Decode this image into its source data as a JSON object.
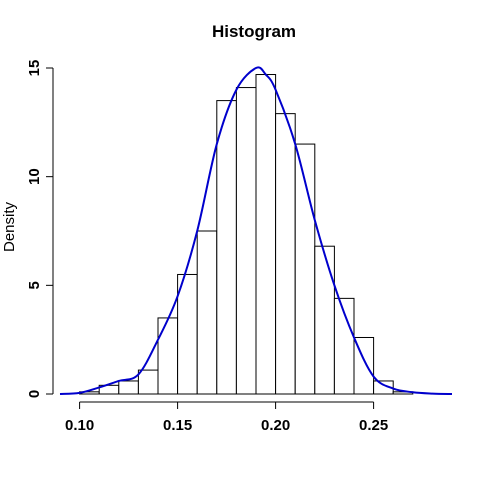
{
  "chart_data": {
    "type": "bar",
    "title": "Histogram",
    "xlabel": "",
    "ylabel": "Density",
    "xlim": [
      0.09,
      0.29
    ],
    "ylim": [
      0,
      15
    ],
    "bin_width": 0.01,
    "x_ticks": [
      0.1,
      0.15,
      0.2,
      0.25
    ],
    "x_tick_labels": [
      "0.10",
      "0.15",
      "0.20",
      "0.25"
    ],
    "y_ticks": [
      0,
      5,
      10,
      15
    ],
    "y_tick_labels": [
      "0",
      "5",
      "10",
      "15"
    ],
    "bins": [
      {
        "start": 0.1,
        "end": 0.11,
        "density": 0.1
      },
      {
        "start": 0.11,
        "end": 0.12,
        "density": 0.4
      },
      {
        "start": 0.12,
        "end": 0.13,
        "density": 0.6
      },
      {
        "start": 0.13,
        "end": 0.14,
        "density": 1.1
      },
      {
        "start": 0.14,
        "end": 0.15,
        "density": 3.5
      },
      {
        "start": 0.15,
        "end": 0.16,
        "density": 5.5
      },
      {
        "start": 0.16,
        "end": 0.17,
        "density": 7.5
      },
      {
        "start": 0.17,
        "end": 0.18,
        "density": 13.5
      },
      {
        "start": 0.18,
        "end": 0.19,
        "density": 14.1
      },
      {
        "start": 0.19,
        "end": 0.2,
        "density": 14.7
      },
      {
        "start": 0.2,
        "end": 0.21,
        "density": 12.9
      },
      {
        "start": 0.21,
        "end": 0.22,
        "density": 11.5
      },
      {
        "start": 0.22,
        "end": 0.23,
        "density": 6.8
      },
      {
        "start": 0.23,
        "end": 0.24,
        "density": 4.4
      },
      {
        "start": 0.24,
        "end": 0.25,
        "density": 2.6
      },
      {
        "start": 0.25,
        "end": 0.26,
        "density": 0.6
      },
      {
        "start": 0.26,
        "end": 0.27,
        "density": 0.1
      }
    ],
    "density_curve": {
      "color": "#0000cc",
      "x": [
        0.09,
        0.1,
        0.11,
        0.12,
        0.13,
        0.14,
        0.15,
        0.16,
        0.17,
        0.18,
        0.19,
        0.195,
        0.2,
        0.21,
        0.22,
        0.23,
        0.24,
        0.25,
        0.26,
        0.27,
        0.28,
        0.29
      ],
      "y": [
        0.0,
        0.05,
        0.3,
        0.6,
        0.9,
        2.5,
        4.5,
        7.5,
        11.5,
        14.0,
        15.0,
        14.7,
        14.0,
        11.5,
        8.0,
        5.0,
        2.6,
        0.8,
        0.25,
        0.08,
        0.02,
        0.0
      ]
    },
    "bar_fill": "#ffffff",
    "bar_stroke": "#000000",
    "grid": false,
    "legend": "none"
  }
}
